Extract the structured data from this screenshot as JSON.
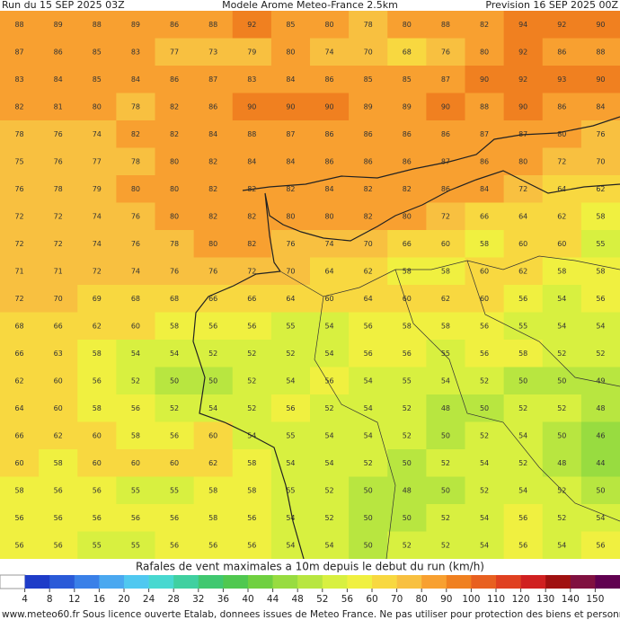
{
  "header": {
    "left": "Run du 15 SEP 2025 03Z",
    "center": "Modele Arome Meteo-France 2.5km",
    "right": "Prevision 16 SEP 2025 00Z"
  },
  "map": {
    "grid": [
      [
        88,
        89,
        88,
        89,
        86,
        88,
        92,
        85,
        80,
        78,
        80,
        88,
        82,
        94,
        92,
        90
      ],
      [
        87,
        86,
        85,
        83,
        77,
        73,
        79,
        80,
        74,
        70,
        68,
        76,
        80,
        92,
        86,
        88
      ],
      [
        83,
        84,
        85,
        84,
        86,
        87,
        83,
        84,
        86,
        85,
        85,
        87,
        90,
        92,
        93,
        90
      ],
      [
        82,
        81,
        80,
        78,
        82,
        86,
        90,
        90,
        90,
        89,
        89,
        90,
        88,
        90,
        86,
        84
      ],
      [
        78,
        76,
        74,
        82,
        82,
        84,
        88,
        87,
        86,
        86,
        86,
        86,
        87,
        87,
        80,
        76
      ],
      [
        75,
        76,
        77,
        78,
        80,
        82,
        84,
        84,
        86,
        86,
        86,
        87,
        86,
        80,
        72,
        70
      ],
      [
        76,
        78,
        79,
        80,
        80,
        82,
        82,
        82,
        84,
        82,
        82,
        86,
        84,
        72,
        64,
        62
      ],
      [
        72,
        72,
        74,
        76,
        80,
        82,
        82,
        80,
        80,
        82,
        80,
        72,
        66,
        64,
        62,
        58
      ],
      [
        72,
        72,
        74,
        76,
        78,
        80,
        82,
        76,
        74,
        70,
        66,
        60,
        58,
        60,
        60,
        55
      ],
      [
        71,
        71,
        72,
        74,
        76,
        76,
        72,
        70,
        64,
        62,
        58,
        58,
        60,
        62,
        58,
        58
      ],
      [
        72,
        70,
        69,
        68,
        68,
        66,
        66,
        64,
        60,
        64,
        60,
        62,
        60,
        56,
        54,
        56
      ],
      [
        68,
        66,
        62,
        60,
        58,
        56,
        56,
        55,
        54,
        56,
        58,
        58,
        56,
        55,
        54,
        54
      ],
      [
        66,
        63,
        58,
        54,
        54,
        52,
        52,
        52,
        54,
        56,
        56,
        55,
        56,
        58,
        52,
        52
      ],
      [
        62,
        60,
        56,
        52,
        50,
        50,
        52,
        54,
        56,
        54,
        55,
        54,
        52,
        50,
        50,
        49
      ],
      [
        64,
        60,
        58,
        56,
        52,
        54,
        52,
        56,
        52,
        54,
        52,
        48,
        50,
        52,
        52,
        48
      ],
      [
        66,
        62,
        60,
        58,
        56,
        60,
        54,
        55,
        54,
        54,
        52,
        50,
        52,
        54,
        50,
        46
      ],
      [
        60,
        58,
        60,
        60,
        60,
        62,
        58,
        54,
        54,
        52,
        50,
        52,
        54,
        52,
        48,
        44
      ],
      [
        58,
        56,
        56,
        55,
        55,
        58,
        58,
        55,
        52,
        50,
        48,
        50,
        52,
        54,
        52,
        50
      ],
      [
        56,
        56,
        56,
        56,
        56,
        58,
        56,
        54,
        52,
        50,
        50,
        52,
        54,
        56,
        52,
        54
      ],
      [
        56,
        56,
        55,
        55,
        56,
        56,
        56,
        54,
        54,
        50,
        52,
        52,
        54,
        56,
        54,
        56
      ]
    ]
  },
  "colorbar": {
    "title": "Rafales de vent maximales a 10m depuis le debut du run (km/h)",
    "labels": [
      4,
      8,
      12,
      16,
      20,
      24,
      28,
      32,
      36,
      40,
      44,
      48,
      52,
      56,
      60,
      70,
      80,
      90,
      100,
      110,
      120,
      130,
      140,
      150
    ],
    "colors": [
      "#ffffff",
      "#1e3cc8",
      "#2a5ad8",
      "#3a80e8",
      "#4aa8f0",
      "#50c8f0",
      "#48d8d0",
      "#40d0a0",
      "#40c870",
      "#50c850",
      "#70d040",
      "#98dc40",
      "#b8e640",
      "#d8f040",
      "#f0f040",
      "#f8d840",
      "#f8c040",
      "#f8a030",
      "#f08020",
      "#e86020",
      "#e04020",
      "#d02020",
      "#a01010",
      "#801040",
      "#600050"
    ]
  },
  "footer": "www.meteo60.fr Sous licence ouverte Etalab, donnees issues de Meteo France. Ne pas utiliser pour protection des biens et personnes"
}
